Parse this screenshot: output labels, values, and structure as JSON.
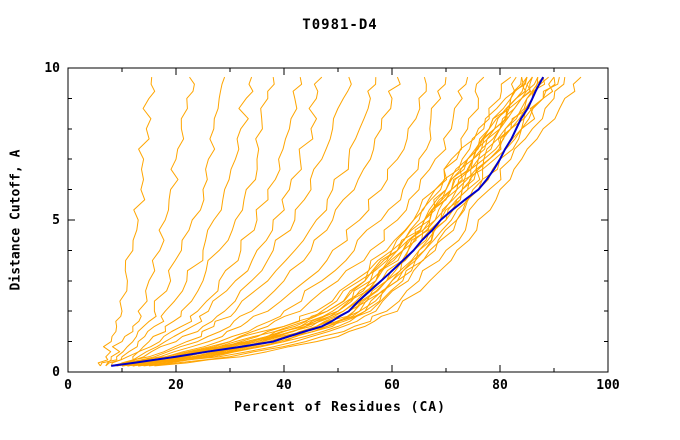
{
  "chart_data": {
    "type": "line",
    "title": "T0981-D4",
    "xlabel": "Percent of Residues (CA)",
    "ylabel": "Distance Cutoff, A",
    "xlim": [
      0,
      100
    ],
    "ylim": [
      0,
      10
    ],
    "grid": false,
    "legend": "none",
    "x_ticks": {
      "major": [
        0,
        20,
        40,
        60,
        80,
        100
      ],
      "minor": [
        10,
        30,
        50,
        70,
        90
      ]
    },
    "y_ticks": {
      "major": [
        0,
        5,
        10
      ],
      "minor": [
        1,
        2,
        3,
        4,
        6,
        7,
        8,
        9
      ]
    },
    "colors": {
      "predictions": "#FFA500",
      "highlight": "#0000CC",
      "axis": "#000000",
      "background": "#FFFFFF"
    },
    "y_samples": [
      0.2,
      0.5,
      1,
      1.5,
      2,
      3,
      4,
      5,
      6,
      7,
      8,
      9,
      9.7
    ],
    "series": [
      {
        "role": "prediction",
        "color": "#FFA500",
        "width": 1,
        "x": [
          6,
          7,
          8,
          9,
          10,
          11,
          12,
          13,
          13.5,
          14,
          14.5,
          15,
          15.5
        ]
      },
      {
        "role": "prediction",
        "color": "#FFA500",
        "width": 1,
        "x": [
          7,
          8,
          10,
          12,
          13,
          15,
          17,
          18,
          19,
          20,
          21,
          22,
          22.5
        ]
      },
      {
        "role": "prediction",
        "color": "#FFA500",
        "width": 1,
        "x": [
          6,
          9,
          12,
          14,
          16,
          19,
          21,
          23,
          25,
          26,
          27,
          28,
          29
        ]
      },
      {
        "role": "prediction",
        "color": "#FFA500",
        "width": 1,
        "x": [
          8,
          10,
          13,
          16,
          18,
          22,
          25,
          27,
          29,
          31,
          32,
          33,
          34
        ]
      },
      {
        "role": "prediction",
        "color": "#FFA500",
        "width": 1,
        "x": [
          7,
          11,
          15,
          18,
          21,
          25,
          28,
          31,
          33,
          35,
          36,
          37,
          38
        ]
      },
      {
        "role": "prediction",
        "color": "#FFA500",
        "width": 1,
        "x": [
          9,
          12,
          17,
          21,
          24,
          28,
          32,
          35,
          37,
          39,
          41,
          42,
          43
        ]
      },
      {
        "role": "prediction",
        "color": "#FFA500",
        "width": 1,
        "x": [
          8,
          13,
          18,
          23,
          26,
          31,
          35,
          38,
          41,
          43,
          45,
          46,
          47
        ]
      },
      {
        "role": "prediction",
        "color": "#FFA500",
        "width": 1,
        "x": [
          10,
          14,
          20,
          25,
          29,
          34,
          38,
          42,
          45,
          47,
          49,
          51,
          52
        ]
      },
      {
        "role": "prediction",
        "color": "#FFA500",
        "width": 1,
        "x": [
          9,
          15,
          22,
          27,
          31,
          37,
          42,
          46,
          49,
          52,
          54,
          56,
          57
        ]
      },
      {
        "role": "prediction",
        "color": "#FFA500",
        "width": 1,
        "x": [
          11,
          16,
          24,
          30,
          34,
          40,
          45,
          49,
          53,
          56,
          58,
          60,
          61
        ]
      },
      {
        "role": "prediction",
        "color": "#FFA500",
        "width": 1,
        "x": [
          10,
          17,
          26,
          32,
          37,
          44,
          49,
          54,
          58,
          61,
          63,
          65,
          66
        ]
      },
      {
        "role": "prediction",
        "color": "#FFA500",
        "width": 1,
        "x": [
          12,
          18,
          28,
          35,
          40,
          47,
          53,
          58,
          62,
          65,
          67,
          69,
          70
        ]
      },
      {
        "role": "prediction",
        "color": "#FFA500",
        "width": 1,
        "x": [
          11,
          19,
          30,
          37,
          43,
          50,
          56,
          61,
          65,
          68,
          71,
          73,
          74
        ]
      },
      {
        "role": "prediction",
        "color": "#FFA500",
        "width": 1,
        "x": [
          13,
          20,
          32,
          40,
          46,
          53,
          59,
          64,
          68,
          71,
          74,
          76,
          77
        ]
      },
      {
        "role": "prediction",
        "color": "#FFA500",
        "width": 1,
        "x": [
          8,
          20,
          33,
          42,
          48,
          55,
          60,
          64,
          68,
          72,
          76,
          80,
          82
        ]
      },
      {
        "role": "prediction",
        "color": "#FFA500",
        "width": 1,
        "x": [
          9,
          22,
          35,
          44,
          50,
          57,
          62,
          66,
          70,
          74,
          78,
          82,
          84
        ]
      },
      {
        "role": "prediction",
        "color": "#FFA500",
        "width": 1,
        "x": [
          10,
          24,
          37,
          46,
          52,
          58,
          63,
          67,
          71,
          75,
          79,
          83,
          85
        ]
      },
      {
        "role": "prediction",
        "color": "#FFA500",
        "width": 1,
        "x": [
          8,
          18,
          30,
          40,
          47,
          54,
          60,
          65,
          69,
          73,
          77,
          81,
          83
        ]
      },
      {
        "role": "prediction",
        "color": "#FFA500",
        "width": 1,
        "x": [
          11,
          25,
          38,
          47,
          53,
          59,
          64,
          68,
          72,
          76,
          80,
          84,
          86
        ]
      },
      {
        "role": "prediction",
        "color": "#FFA500",
        "width": 1,
        "x": [
          9,
          21,
          34,
          43,
          50,
          56,
          61,
          66,
          70,
          74,
          78,
          82,
          85
        ]
      },
      {
        "role": "prediction",
        "color": "#FFA500",
        "width": 1,
        "x": [
          10,
          23,
          36,
          45,
          51,
          58,
          63,
          68,
          72,
          76,
          80,
          84,
          87
        ]
      },
      {
        "role": "prediction",
        "color": "#FFA500",
        "width": 1,
        "x": [
          12,
          26,
          39,
          48,
          54,
          60,
          65,
          69,
          73,
          77,
          81,
          85,
          88
        ]
      },
      {
        "role": "prediction",
        "color": "#FFA500",
        "width": 1,
        "x": [
          8,
          19,
          31,
          41,
          48,
          55,
          61,
          66,
          71,
          75,
          79,
          83,
          86
        ]
      },
      {
        "role": "prediction",
        "color": "#FFA500",
        "width": 1,
        "x": [
          10,
          22,
          35,
          44,
          51,
          57,
          62,
          67,
          71,
          75,
          79,
          83,
          85
        ]
      },
      {
        "role": "prediction",
        "color": "#FFA500",
        "width": 1,
        "x": [
          11,
          24,
          37,
          46,
          52,
          59,
          64,
          69,
          73,
          77,
          81,
          85,
          87
        ]
      },
      {
        "role": "prediction",
        "color": "#FFA500",
        "width": 1,
        "x": [
          9,
          20,
          33,
          43,
          49,
          56,
          61,
          66,
          70,
          74,
          78,
          82,
          84
        ]
      },
      {
        "role": "prediction",
        "color": "#FFA500",
        "width": 1,
        "x": [
          13,
          27,
          40,
          49,
          55,
          61,
          66,
          70,
          74,
          78,
          82,
          86,
          89
        ]
      },
      {
        "role": "prediction",
        "color": "#FFA500",
        "width": 1,
        "x": [
          10,
          21,
          34,
          44,
          50,
          57,
          62,
          67,
          71,
          75,
          80,
          84,
          86
        ]
      },
      {
        "role": "prediction",
        "color": "#FFA500",
        "width": 1,
        "x": [
          12,
          25,
          38,
          47,
          54,
          60,
          65,
          70,
          74,
          78,
          82,
          86,
          88
        ]
      },
      {
        "role": "prediction",
        "color": "#FFA500",
        "width": 1,
        "x": [
          14,
          28,
          42,
          51,
          57,
          63,
          68,
          72,
          76,
          80,
          84,
          88,
          90
        ]
      },
      {
        "role": "prediction",
        "color": "#FFA500",
        "width": 1,
        "x": [
          11,
          23,
          36,
          46,
          53,
          59,
          64,
          69,
          73,
          78,
          82,
          86,
          88
        ]
      },
      {
        "role": "prediction",
        "color": "#FFA500",
        "width": 1,
        "x": [
          15,
          30,
          44,
          53,
          59,
          65,
          70,
          74,
          78,
          82,
          86,
          90,
          92
        ]
      },
      {
        "role": "prediction",
        "color": "#FFA500",
        "width": 1,
        "x": [
          13,
          26,
          40,
          50,
          56,
          62,
          67,
          72,
          76,
          80,
          84,
          88,
          91
        ]
      },
      {
        "role": "prediction",
        "color": "#FFA500",
        "width": 1,
        "x": [
          16,
          32,
          46,
          55,
          61,
          67,
          72,
          76,
          80,
          84,
          88,
          92,
          95
        ]
      },
      {
        "role": "prediction",
        "color": "#FFA500",
        "width": 1,
        "x": [
          12,
          24,
          38,
          48,
          55,
          61,
          66,
          71,
          75,
          79,
          84,
          88,
          90
        ]
      },
      {
        "role": "highlight",
        "color": "#0000CC",
        "width": 2,
        "x": [
          8,
          20,
          38,
          47,
          52,
          58,
          64,
          69,
          76,
          80,
          83,
          86,
          88
        ]
      }
    ]
  }
}
